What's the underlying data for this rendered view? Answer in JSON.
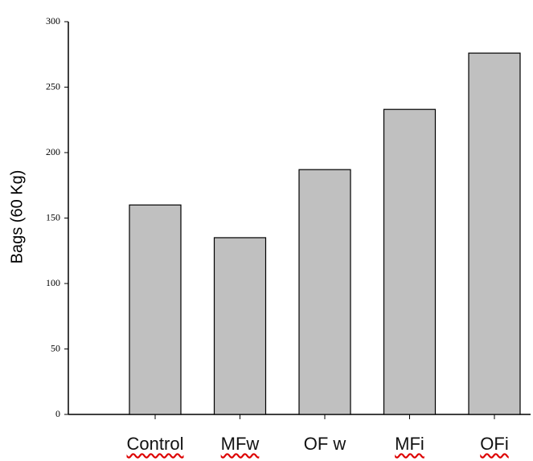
{
  "chart_data": {
    "type": "bar",
    "y_label": "Bags (60 Kg)",
    "categories": [
      "Control",
      "MFw",
      "OF w",
      "MFi",
      "OFi"
    ],
    "values": [
      160,
      135,
      187,
      233,
      276
    ],
    "color": "#c0c0c0",
    "ylim": [
      0,
      300
    ],
    "yticks": [
      0,
      50,
      100,
      150,
      200,
      250,
      300
    ]
  }
}
